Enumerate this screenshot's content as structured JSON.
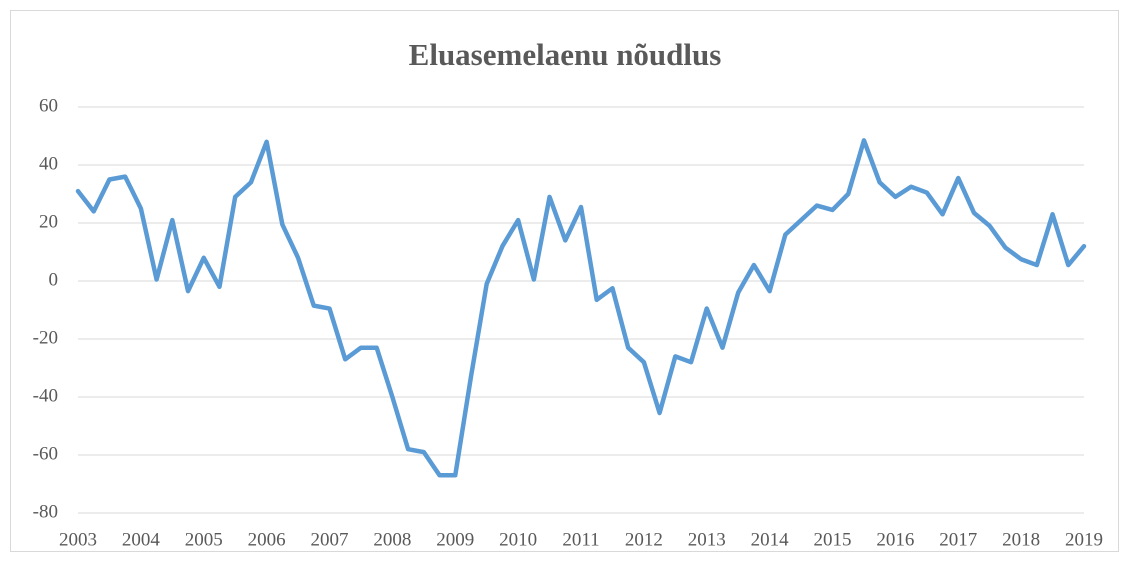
{
  "chart_data": {
    "type": "line",
    "title": "Eluasemelaenu nõudlus",
    "categories": [
      "2003",
      null,
      null,
      null,
      "2004",
      null,
      null,
      null,
      "2005",
      null,
      null,
      null,
      "2006",
      null,
      null,
      null,
      "2007",
      null,
      null,
      null,
      "2008",
      null,
      null,
      null,
      "2009",
      null,
      null,
      null,
      "2010",
      null,
      null,
      null,
      "2011",
      null,
      null,
      null,
      "2012",
      null,
      null,
      null,
      "2013",
      null,
      null,
      null,
      "2014",
      null,
      null,
      null,
      "2015",
      null,
      null,
      null,
      "2016",
      null,
      null,
      null,
      "2017",
      null,
      null,
      null,
      "2018",
      null,
      null,
      null,
      "2019"
    ],
    "values": [
      31,
      24,
      35,
      36,
      25,
      0.5,
      21,
      -3.5,
      8,
      -2,
      29,
      34,
      48,
      19.5,
      8,
      -8.5,
      -9.5,
      -27,
      -23,
      -23,
      -40,
      -58,
      -59,
      -67,
      -67,
      -33,
      -1,
      12,
      21,
      0.5,
      29,
      14,
      25.5,
      -6.5,
      -2.5,
      -23,
      -28,
      -45.5,
      -26,
      -28,
      -9.5,
      -23,
      -4,
      5.5,
      -3.5,
      16,
      21,
      26,
      24.5,
      30,
      48.5,
      34,
      29,
      32.5,
      30.5,
      23,
      35.5,
      23.5,
      19,
      11.5,
      7.5,
      5.5,
      23,
      5.5,
      12
    ],
    "color": "#5b9bd5",
    "ylim": [
      -80,
      60
    ],
    "yticks": [
      -80,
      -60,
      -40,
      -20,
      0,
      20,
      40,
      60
    ],
    "grid": true
  }
}
